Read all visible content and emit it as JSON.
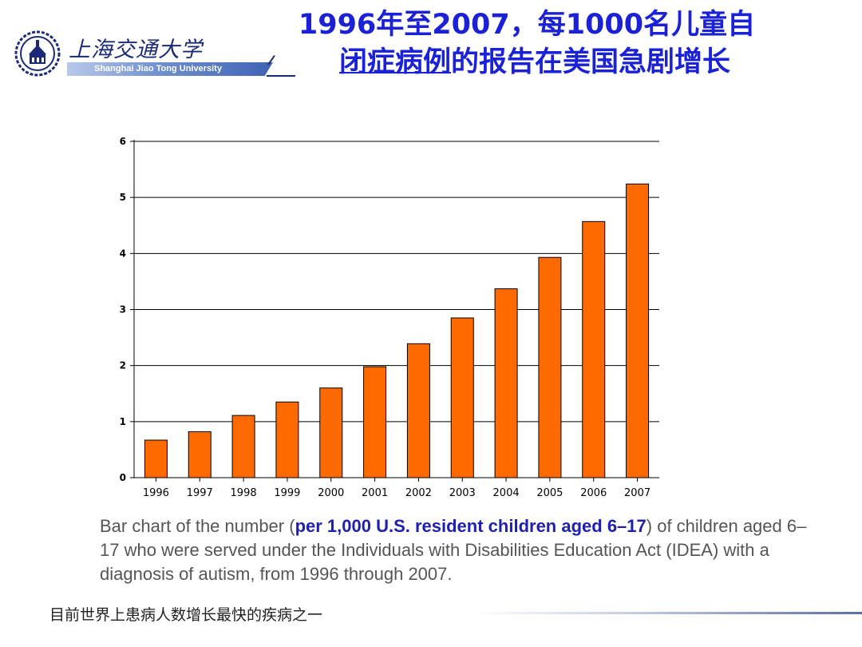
{
  "header": {
    "school_cn": "上海交通大学",
    "school_en": "Shanghai Jiao Tong University",
    "title_line1": "1996年至2007，每1000名儿童自",
    "title_line2_underlined": "闭症病例",
    "title_line2_rest": "的报告在美国急剧增长"
  },
  "caption": {
    "part1": "Bar chart of the number (",
    "bold": "per 1,000 U.S. resident children aged 6–17",
    "part2": ") of children aged 6–17 who were served under the Individuals with Disabilities Education Act (IDEA) with a diagnosis of autism, from 1996 through 2007."
  },
  "footer": {
    "text": "目前世界上患病人数增长最快的疾病之一"
  },
  "colors": {
    "bar": "#ff6a00",
    "title": "#1a21d6",
    "caption_bold": "#2020b0"
  },
  "chart_data": {
    "type": "bar",
    "categories": [
      "1996",
      "1997",
      "1998",
      "1999",
      "2000",
      "2001",
      "2002",
      "2003",
      "2004",
      "2005",
      "2006",
      "2007"
    ],
    "values": [
      0.67,
      0.82,
      1.11,
      1.35,
      1.6,
      1.98,
      2.39,
      2.85,
      3.37,
      3.93,
      4.57,
      5.24
    ],
    "ylim": [
      0,
      6
    ],
    "yticks": [
      "0",
      "1",
      "2",
      "3",
      "4",
      "5",
      "6"
    ],
    "grid": true,
    "title": "",
    "xlabel": "",
    "ylabel": ""
  }
}
